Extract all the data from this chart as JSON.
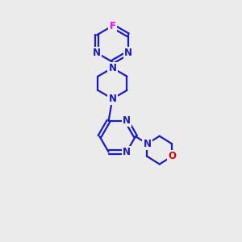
{
  "background_color": "#ebebeb",
  "bond_color": "#1a1acd",
  "F_color": "#ff00ff",
  "O_color": "#dd0000",
  "N_color": "#1a1acd",
  "line_width": 1.6,
  "font_size_atom": 8.5,
  "xlim": [
    0,
    10
  ],
  "ylim": [
    0,
    14
  ]
}
